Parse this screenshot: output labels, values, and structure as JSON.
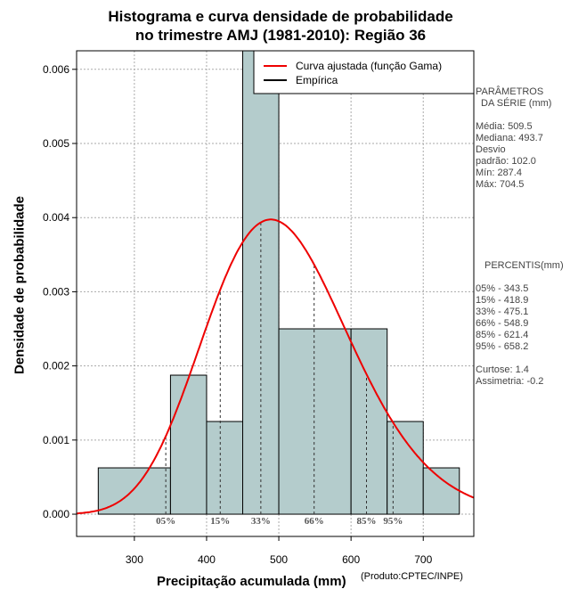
{
  "chart_data": {
    "type": "bar",
    "title_line1": "Histograma e curva densidade de probabilidade",
    "title_line2": "no trimestre AMJ (1981-2010): Região 36",
    "xlabel": "Precipitação acumulada (mm)",
    "ylabel": "Densidade de probabilidade",
    "credit": "(Produto:CPTEC/INPE)",
    "xlim": [
      220,
      770
    ],
    "ylim": [
      -0.0003,
      0.00625
    ],
    "xticks": [
      300,
      400,
      500,
      600,
      700
    ],
    "yticks": [
      0.0,
      0.001,
      0.002,
      0.003,
      0.004,
      0.005,
      0.006
    ],
    "ytick_labels": [
      "0.000",
      "0.001",
      "0.002",
      "0.003",
      "0.004",
      "0.005",
      "0.006"
    ],
    "grid": true,
    "bins": [
      {
        "x0": 250,
        "x1": 350,
        "value": 0.000625
      },
      {
        "x0": 350,
        "x1": 400,
        "value": 0.001875
      },
      {
        "x0": 400,
        "x1": 450,
        "value": 0.00125
      },
      {
        "x0": 450,
        "x1": 500,
        "value": 0.00625
      },
      {
        "x0": 500,
        "x1": 600,
        "value": 0.0025
      },
      {
        "x0": 600,
        "x1": 650,
        "value": 0.0025
      },
      {
        "x0": 650,
        "x1": 700,
        "value": 0.00125
      },
      {
        "x0": 700,
        "x1": 750,
        "value": 0.000625
      }
    ],
    "bar_color": "#b4cccc",
    "curve": {
      "label": "Curva ajustada (função Gama)",
      "color": "#ee0000",
      "shape": 24.9,
      "scale": 20.46
    },
    "empirical_label": "Empírica",
    "legend_position": "top-right",
    "percentiles": [
      {
        "label": "05%",
        "value": 343.5
      },
      {
        "label": "15%",
        "value": 418.9
      },
      {
        "label": "33%",
        "value": 475.1
      },
      {
        "label": "66%",
        "value": 548.9
      },
      {
        "label": "85%",
        "value": 621.4
      },
      {
        "label": "95%",
        "value": 658.2
      }
    ]
  },
  "stats": {
    "params_title_1": "PARÂMETROS",
    "params_title_2": "DA SÉRIE (mm)",
    "media": "Média:  509.5",
    "mediana": "Mediana:  493.7",
    "desvio_1": "Desvio",
    "desvio_2": "padrão:  102.0",
    "min": "Mín:  287.4",
    "max": "Máx:  704.5",
    "pct_title": "PERCENTIS(mm)",
    "p05": "05% -   343.5",
    "p15": "15% -   418.9",
    "p33": "33% -   475.1",
    "p66": "66% -   548.9",
    "p85": "85% -   621.4",
    "p95": "95% -   658.2",
    "curtose": "Curtose:   1.4",
    "assimetria": "Assimetria:  -0.2"
  }
}
